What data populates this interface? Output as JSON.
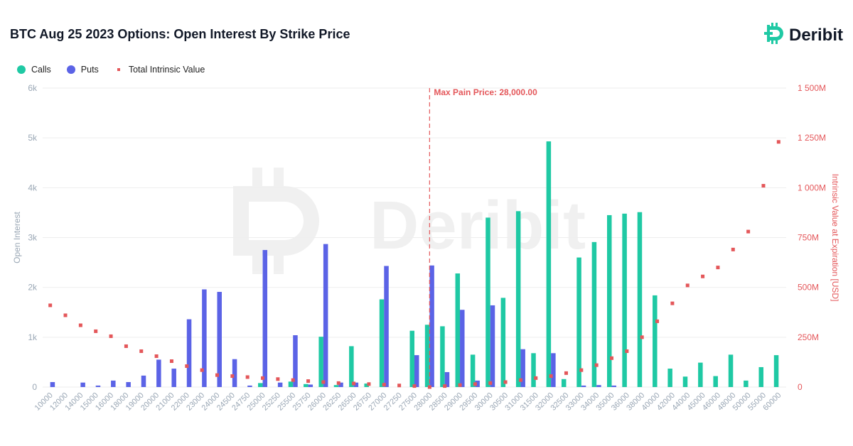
{
  "title": "BTC Aug 25 2023 Options: Open Interest By Strike Price",
  "brand": {
    "name": "Deribit",
    "color": "#1fc9a4",
    "icon": "deribit-logo-icon"
  },
  "legend": {
    "calls": "Calls",
    "puts": "Puts",
    "intrinsic": "Total Intrinsic Value"
  },
  "colors": {
    "calls": "#1fc9a4",
    "puts": "#5b63e6",
    "intrinsic": "#e4575a",
    "grid": "#eeeeee",
    "leftAxis": "#9aa7b5",
    "rightAxis": "#e4575a"
  },
  "chart_data": {
    "type": "bar",
    "title": "BTC Aug 25 2023 Options: Open Interest By Strike Price",
    "categories": [
      "10000",
      "12000",
      "14000",
      "15000",
      "16000",
      "18000",
      "19000",
      "20000",
      "21000",
      "22000",
      "23000",
      "24000",
      "24500",
      "24750",
      "25000",
      "25250",
      "25500",
      "25750",
      "26000",
      "26250",
      "26500",
      "26750",
      "27000",
      "27250",
      "27500",
      "28000",
      "28500",
      "29000",
      "29500",
      "30000",
      "30500",
      "31000",
      "31500",
      "32000",
      "32500",
      "33000",
      "34000",
      "35000",
      "36000",
      "38000",
      "40000",
      "42000",
      "44000",
      "45000",
      "46000",
      "48000",
      "50000",
      "55000",
      "60000"
    ],
    "series": [
      {
        "name": "Calls",
        "axis": "left",
        "values": [
          0,
          0,
          0,
          0,
          0,
          0,
          0,
          0,
          0,
          0,
          0,
          0,
          0,
          0,
          80,
          0,
          110,
          60,
          1010,
          40,
          820,
          70,
          1760,
          0,
          1130,
          1250,
          1220,
          2280,
          650,
          3400,
          1790,
          3530,
          680,
          4930,
          160,
          2600,
          2910,
          3450,
          3480,
          3510,
          1840,
          370,
          210,
          490,
          220,
          650,
          130,
          400,
          640
        ]
      },
      {
        "name": "Puts",
        "axis": "left",
        "values": [
          100,
          0,
          90,
          30,
          130,
          100,
          230,
          550,
          370,
          1360,
          1960,
          1910,
          560,
          30,
          2750,
          90,
          1040,
          50,
          2870,
          90,
          90,
          0,
          2430,
          0,
          640,
          2440,
          300,
          1550,
          130,
          1640,
          0,
          760,
          0,
          680,
          0,
          30,
          40,
          30,
          0,
          0,
          0,
          0,
          0,
          0,
          0,
          0,
          0,
          0,
          0
        ]
      },
      {
        "name": "Total Intrinsic Value",
        "axis": "right",
        "type": "scatter",
        "values": [
          410,
          360,
          310,
          280,
          255,
          205,
          180,
          155,
          130,
          105,
          85,
          60,
          55,
          50,
          45,
          40,
          35,
          30,
          25,
          20,
          18,
          15,
          12,
          8,
          5,
          0,
          5,
          10,
          15,
          20,
          25,
          35,
          45,
          55,
          70,
          85,
          110,
          145,
          180,
          250,
          330,
          420,
          510,
          555,
          600,
          690,
          780,
          1010,
          1230
        ]
      }
    ],
    "ylabel": "Open Interest",
    "ylim": [
      0,
      6000
    ],
    "yticks": [
      "0",
      "1k",
      "2k",
      "3k",
      "4k",
      "5k",
      "6k"
    ],
    "y2label": "Intrinsic Value at Expiration [USD]",
    "y2lim": [
      0,
      1500
    ],
    "y2ticks": [
      "0",
      "250M",
      "500M",
      "750M",
      "1 000M",
      "1 250M",
      "1 500M"
    ],
    "max_pain": {
      "label": "Max Pain Price: 28,000.00",
      "strike": "28000"
    },
    "grid": true,
    "legend_position": "top-left"
  }
}
